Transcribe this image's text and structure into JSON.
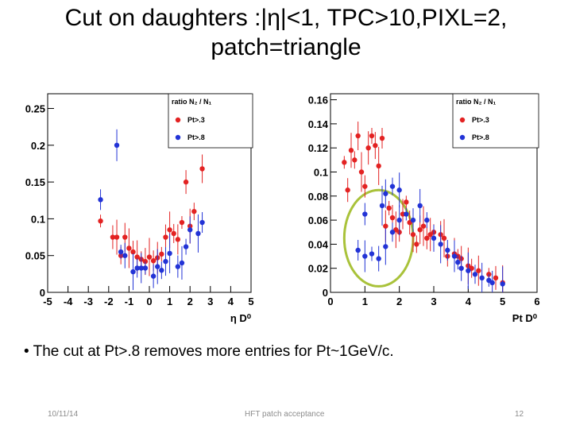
{
  "slide": {
    "title_line1": "Cut on daughters :|η|<1, TPC>10,PIXL=2,",
    "title_line2": "patch=triangle",
    "bullet": "• The cut at Pt>.8 removes more entries for Pt~1GeV/c.",
    "footer_date": "10/11/14",
    "footer_center": "HFT patch acceptance",
    "footer_page": "12"
  },
  "colors": {
    "red": "#e32222",
    "blue": "#2233d6",
    "ellipse": "#a9c23a"
  },
  "chart_data": [
    {
      "type": "scatter",
      "title": "",
      "xlabel": "η D⁰",
      "ylabel": "",
      "xlim": [
        -5,
        5
      ],
      "ylim": [
        0,
        0.27
      ],
      "xticks": [
        "-5",
        "-4",
        "-3",
        "-2",
        "-1",
        "0",
        "1",
        "2",
        "3",
        "4",
        "5"
      ],
      "yticks": [
        "0",
        "0.05",
        "0.1",
        "0.15",
        "0.2",
        "0.25"
      ],
      "ytick_values": [
        0,
        0.05,
        0.1,
        0.15,
        0.2,
        0.25
      ],
      "legend": {
        "title": "ratio N₂ / N₁",
        "entries": [
          "Pt>.3",
          "Pt>.8"
        ]
      },
      "series": [
        {
          "name": "Pt>.3",
          "color": "red",
          "points": [
            [
              -2.4,
              0.097
            ],
            [
              -1.8,
              0.075
            ],
            [
              -1.6,
              0.075
            ],
            [
              -1.4,
              0.05
            ],
            [
              -1.2,
              0.075
            ],
            [
              -1.0,
              0.06
            ],
            [
              -0.8,
              0.055
            ],
            [
              -0.6,
              0.048
            ],
            [
              -0.4,
              0.045
            ],
            [
              -0.2,
              0.042
            ],
            [
              0.0,
              0.048
            ],
            [
              0.2,
              0.043
            ],
            [
              0.4,
              0.047
            ],
            [
              0.6,
              0.052
            ],
            [
              0.8,
              0.075
            ],
            [
              1.0,
              0.085
            ],
            [
              1.2,
              0.08
            ],
            [
              1.4,
              0.072
            ],
            [
              1.6,
              0.095
            ],
            [
              1.8,
              0.15
            ],
            [
              2.0,
              0.09
            ],
            [
              2.2,
              0.11
            ],
            [
              2.6,
              0.168
            ]
          ]
        },
        {
          "name": "Pt>.8",
          "color": "blue",
          "points": [
            [
              -2.4,
              0.126
            ],
            [
              -1.6,
              0.2
            ],
            [
              -1.4,
              0.055
            ],
            [
              -1.2,
              0.05
            ],
            [
              -0.8,
              0.028
            ],
            [
              -0.6,
              0.033
            ],
            [
              -0.4,
              0.033
            ],
            [
              -0.2,
              0.033
            ],
            [
              0.2,
              0.022
            ],
            [
              0.4,
              0.035
            ],
            [
              0.6,
              0.03
            ],
            [
              0.8,
              0.042
            ],
            [
              1.0,
              0.053
            ],
            [
              1.4,
              0.035
            ],
            [
              1.6,
              0.04
            ],
            [
              1.8,
              0.062
            ],
            [
              2.0,
              0.085
            ],
            [
              2.4,
              0.08
            ],
            [
              2.6,
              0.095
            ]
          ]
        }
      ]
    },
    {
      "type": "scatter",
      "title": "",
      "xlabel": "Pt D⁰",
      "ylabel": "",
      "xlim": [
        0,
        6
      ],
      "ylim": [
        0,
        0.165
      ],
      "xticks": [
        "0",
        "1",
        "2",
        "3",
        "4",
        "5",
        "6"
      ],
      "yticks": [
        "0",
        "0.02",
        "0.04",
        "0.06",
        "0.08",
        "0.1",
        "0.12",
        "0.14",
        "0.16"
      ],
      "ytick_values": [
        0,
        0.02,
        0.04,
        0.06,
        0.08,
        0.1,
        0.12,
        0.14,
        0.16
      ],
      "legend": {
        "title": "ratio N₂ / N₁",
        "entries": [
          "Pt>.3",
          "Pt>.8"
        ]
      },
      "annotation": {
        "shape": "ellipse",
        "around_x": [
          0.4,
          2.4
        ],
        "around_y": [
          0.005,
          0.085
        ]
      },
      "series": [
        {
          "name": "Pt>.3",
          "color": "red",
          "points": [
            [
              0.4,
              0.108
            ],
            [
              0.5,
              0.085
            ],
            [
              0.6,
              0.118
            ],
            [
              0.7,
              0.11
            ],
            [
              0.8,
              0.13
            ],
            [
              0.9,
              0.1
            ],
            [
              1.0,
              0.088
            ],
            [
              1.1,
              0.12
            ],
            [
              1.2,
              0.13
            ],
            [
              1.3,
              0.122
            ],
            [
              1.4,
              0.105
            ],
            [
              1.5,
              0.128
            ],
            [
              1.6,
              0.055
            ],
            [
              1.7,
              0.07
            ],
            [
              1.8,
              0.062
            ],
            [
              1.9,
              0.052
            ],
            [
              2.0,
              0.05
            ],
            [
              2.1,
              0.065
            ],
            [
              2.2,
              0.075
            ],
            [
              2.3,
              0.058
            ],
            [
              2.4,
              0.048
            ],
            [
              2.5,
              0.04
            ],
            [
              2.6,
              0.052
            ],
            [
              2.7,
              0.055
            ],
            [
              2.8,
              0.045
            ],
            [
              2.9,
              0.048
            ],
            [
              3.0,
              0.05
            ],
            [
              3.2,
              0.048
            ],
            [
              3.3,
              0.045
            ],
            [
              3.4,
              0.03
            ],
            [
              3.6,
              0.032
            ],
            [
              3.7,
              0.03
            ],
            [
              3.8,
              0.028
            ],
            [
              4.0,
              0.022
            ],
            [
              4.1,
              0.02
            ],
            [
              4.3,
              0.018
            ],
            [
              4.6,
              0.015
            ],
            [
              4.8,
              0.012
            ],
            [
              5.0,
              0.008
            ]
          ]
        },
        {
          "name": "Pt>.8",
          "color": "blue",
          "points": [
            [
              0.8,
              0.035
            ],
            [
              1.0,
              0.03
            ],
            [
              1.2,
              0.032
            ],
            [
              1.4,
              0.028
            ],
            [
              1.6,
              0.038
            ],
            [
              1.8,
              0.05
            ],
            [
              2.0,
              0.06
            ],
            [
              2.2,
              0.065
            ],
            [
              2.4,
              0.06
            ],
            [
              2.0,
              0.085
            ],
            [
              1.8,
              0.088
            ],
            [
              1.6,
              0.082
            ],
            [
              1.5,
              0.072
            ],
            [
              1.0,
              0.065
            ],
            [
              2.6,
              0.072
            ],
            [
              2.8,
              0.06
            ],
            [
              3.0,
              0.045
            ],
            [
              3.2,
              0.04
            ],
            [
              3.4,
              0.035
            ],
            [
              3.6,
              0.03
            ],
            [
              3.7,
              0.025
            ],
            [
              3.8,
              0.02
            ],
            [
              4.0,
              0.018
            ],
            [
              4.2,
              0.015
            ],
            [
              4.4,
              0.012
            ],
            [
              4.6,
              0.01
            ],
            [
              4.7,
              0.008
            ],
            [
              5.0,
              0.007
            ]
          ]
        }
      ]
    }
  ]
}
